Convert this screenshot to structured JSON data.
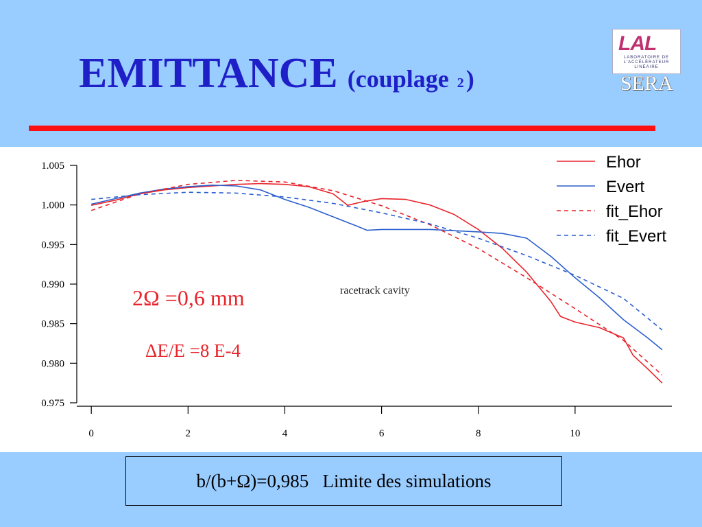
{
  "slide": {
    "title_main": "EMITTANCE",
    "title_sub_open": "(couplage ",
    "title_sub_index": "2",
    "title_sub_close": ")",
    "logo_mark": "LAL",
    "logo_text": "LABORATOIRE DE L'ACCÉLÉRATEUR LINÉAIRE",
    "logo_sub": "SERA",
    "note": "b/(b+Ω)=0,985   Limite des simulations",
    "colors": {
      "background": "#99ccff",
      "title": "#1f1fc8",
      "rule": "#ff1010"
    }
  },
  "chart_data": {
    "type": "line",
    "title": "",
    "xlabel": "",
    "ylabel": "",
    "xlim": [
      -0.3,
      12
    ],
    "ylim": [
      0.975,
      1.005
    ],
    "xticks": [
      0,
      2,
      4,
      6,
      8,
      10
    ],
    "xtick_labels": [
      "0",
      "2",
      "4",
      "6",
      "8",
      "10"
    ],
    "yticks": [
      0.975,
      0.98,
      0.985,
      0.99,
      0.995,
      1.0,
      1.005
    ],
    "ytick_labels": [
      "0.975",
      "0.980",
      "0.985",
      "0.990",
      "0.995",
      "1.000",
      "1.005"
    ],
    "grid": false,
    "legend_position": "top-right",
    "annotations": [
      {
        "text": "2Ω =0,6 mm",
        "color": "#e8232a"
      },
      {
        "text": "ΔE/E =8 E-4",
        "color": "#e8232a"
      },
      {
        "text": "racetrack cavity",
        "color": "#222222"
      }
    ],
    "series": [
      {
        "name": "Ehor",
        "color": "#e8232a",
        "dash": false,
        "x": [
          0,
          0.5,
          1,
          1.5,
          2,
          2.5,
          3,
          3.5,
          4,
          4.5,
          5,
          5.3,
          5.6,
          6,
          6.5,
          7,
          7.5,
          8,
          8.5,
          9,
          9.5,
          9.7,
          10,
          10.5,
          11,
          11.2,
          11.5,
          11.8
        ],
        "y": [
          0.99995,
          1.0006,
          1.0014,
          1.0019,
          1.0022,
          1.0024,
          1.0026,
          1.0027,
          1.0026,
          1.0023,
          1.0014,
          0.99995,
          1.0004,
          1.0008,
          1.0007,
          1.0,
          0.9988,
          0.9969,
          0.9945,
          0.9915,
          0.9878,
          0.9859,
          0.9852,
          0.9845,
          0.9832,
          0.981,
          0.9793,
          0.9775
        ]
      },
      {
        "name": "Evert",
        "color": "#2b5fce",
        "dash": false,
        "x": [
          0,
          0.5,
          1,
          1.5,
          2,
          2.5,
          3,
          3.5,
          4,
          4.5,
          5,
          5.5,
          5.7,
          6,
          7,
          8,
          8.5,
          9,
          9.5,
          10,
          10.5,
          11,
          11.5,
          11.8
        ],
        "y": [
          1.0001,
          1.0008,
          1.0015,
          1.002,
          1.0023,
          1.0025,
          1.0024,
          1.0019,
          1.0007,
          0.9997,
          0.9985,
          0.9973,
          0.9968,
          0.9969,
          0.9969,
          0.9966,
          0.9964,
          0.9958,
          0.9935,
          0.9908,
          0.9883,
          0.9855,
          0.9832,
          0.9817
        ]
      },
      {
        "name": "fit_Ehor",
        "color": "#e8232a",
        "dash": true,
        "x": [
          0,
          1,
          2,
          3,
          4,
          5,
          6,
          7,
          8,
          9,
          10,
          11,
          11.8
        ],
        "y": [
          0.9993,
          1.0014,
          1.0026,
          1.0031,
          1.0029,
          1.0018,
          0.9999,
          0.9975,
          0.9945,
          0.9908,
          0.9869,
          0.9829,
          0.9785
        ]
      },
      {
        "name": "fit_Evert",
        "color": "#2b5fce",
        "dash": true,
        "x": [
          0,
          1,
          2,
          3,
          4,
          5,
          6,
          7,
          8,
          9,
          10,
          11,
          11.8
        ],
        "y": [
          1.0007,
          1.0013,
          1.0016,
          1.0015,
          1.001,
          1.0002,
          0.999,
          0.9976,
          0.9958,
          0.9936,
          0.9911,
          0.9882,
          0.9842
        ]
      }
    ]
  }
}
